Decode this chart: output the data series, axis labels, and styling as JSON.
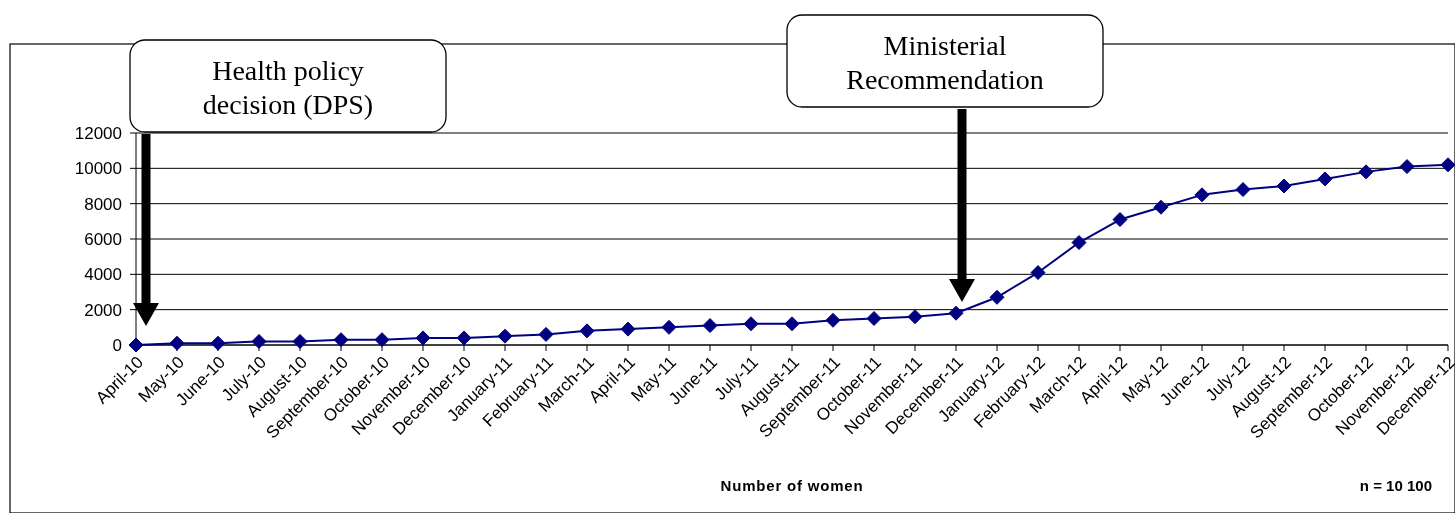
{
  "chart_data": {
    "type": "line",
    "xlabel": "Number of women",
    "categories": [
      "April-10",
      "May-10",
      "June-10",
      "July-10",
      "August-10",
      "September-10",
      "October-10",
      "November-10",
      "December-10",
      "January-11",
      "February-11",
      "March-11",
      "April-11",
      "May-11",
      "June-11",
      "July-11",
      "August-11",
      "September-11",
      "October-11",
      "November-11",
      "December-11",
      "January-12",
      "February-12",
      "March-12",
      "April-12",
      "May-12",
      "June-12",
      "July-12",
      "August-12",
      "September-12",
      "October-12",
      "November-12",
      "December-12"
    ],
    "series": [
      {
        "color": "#000080",
        "values": [
          0,
          100,
          100,
          200,
          200,
          300,
          300,
          400,
          400,
          500,
          600,
          800,
          900,
          1000,
          1100,
          1200,
          1200,
          1400,
          1500,
          1600,
          1800,
          2700,
          4100,
          5800,
          7100,
          7800,
          8500,
          8800,
          9000,
          9400,
          9800,
          10100,
          10200
        ]
      }
    ],
    "ylim": [
      0,
      12000
    ],
    "yticks": [
      0,
      2000,
      4000,
      6000,
      8000,
      10000,
      12000
    ],
    "grid": "y",
    "marker": "diamond",
    "annotations": [
      "Health policy\ndecision (DPS)",
      "Ministerial\nRecommendation",
      "n = 10 100"
    ]
  }
}
